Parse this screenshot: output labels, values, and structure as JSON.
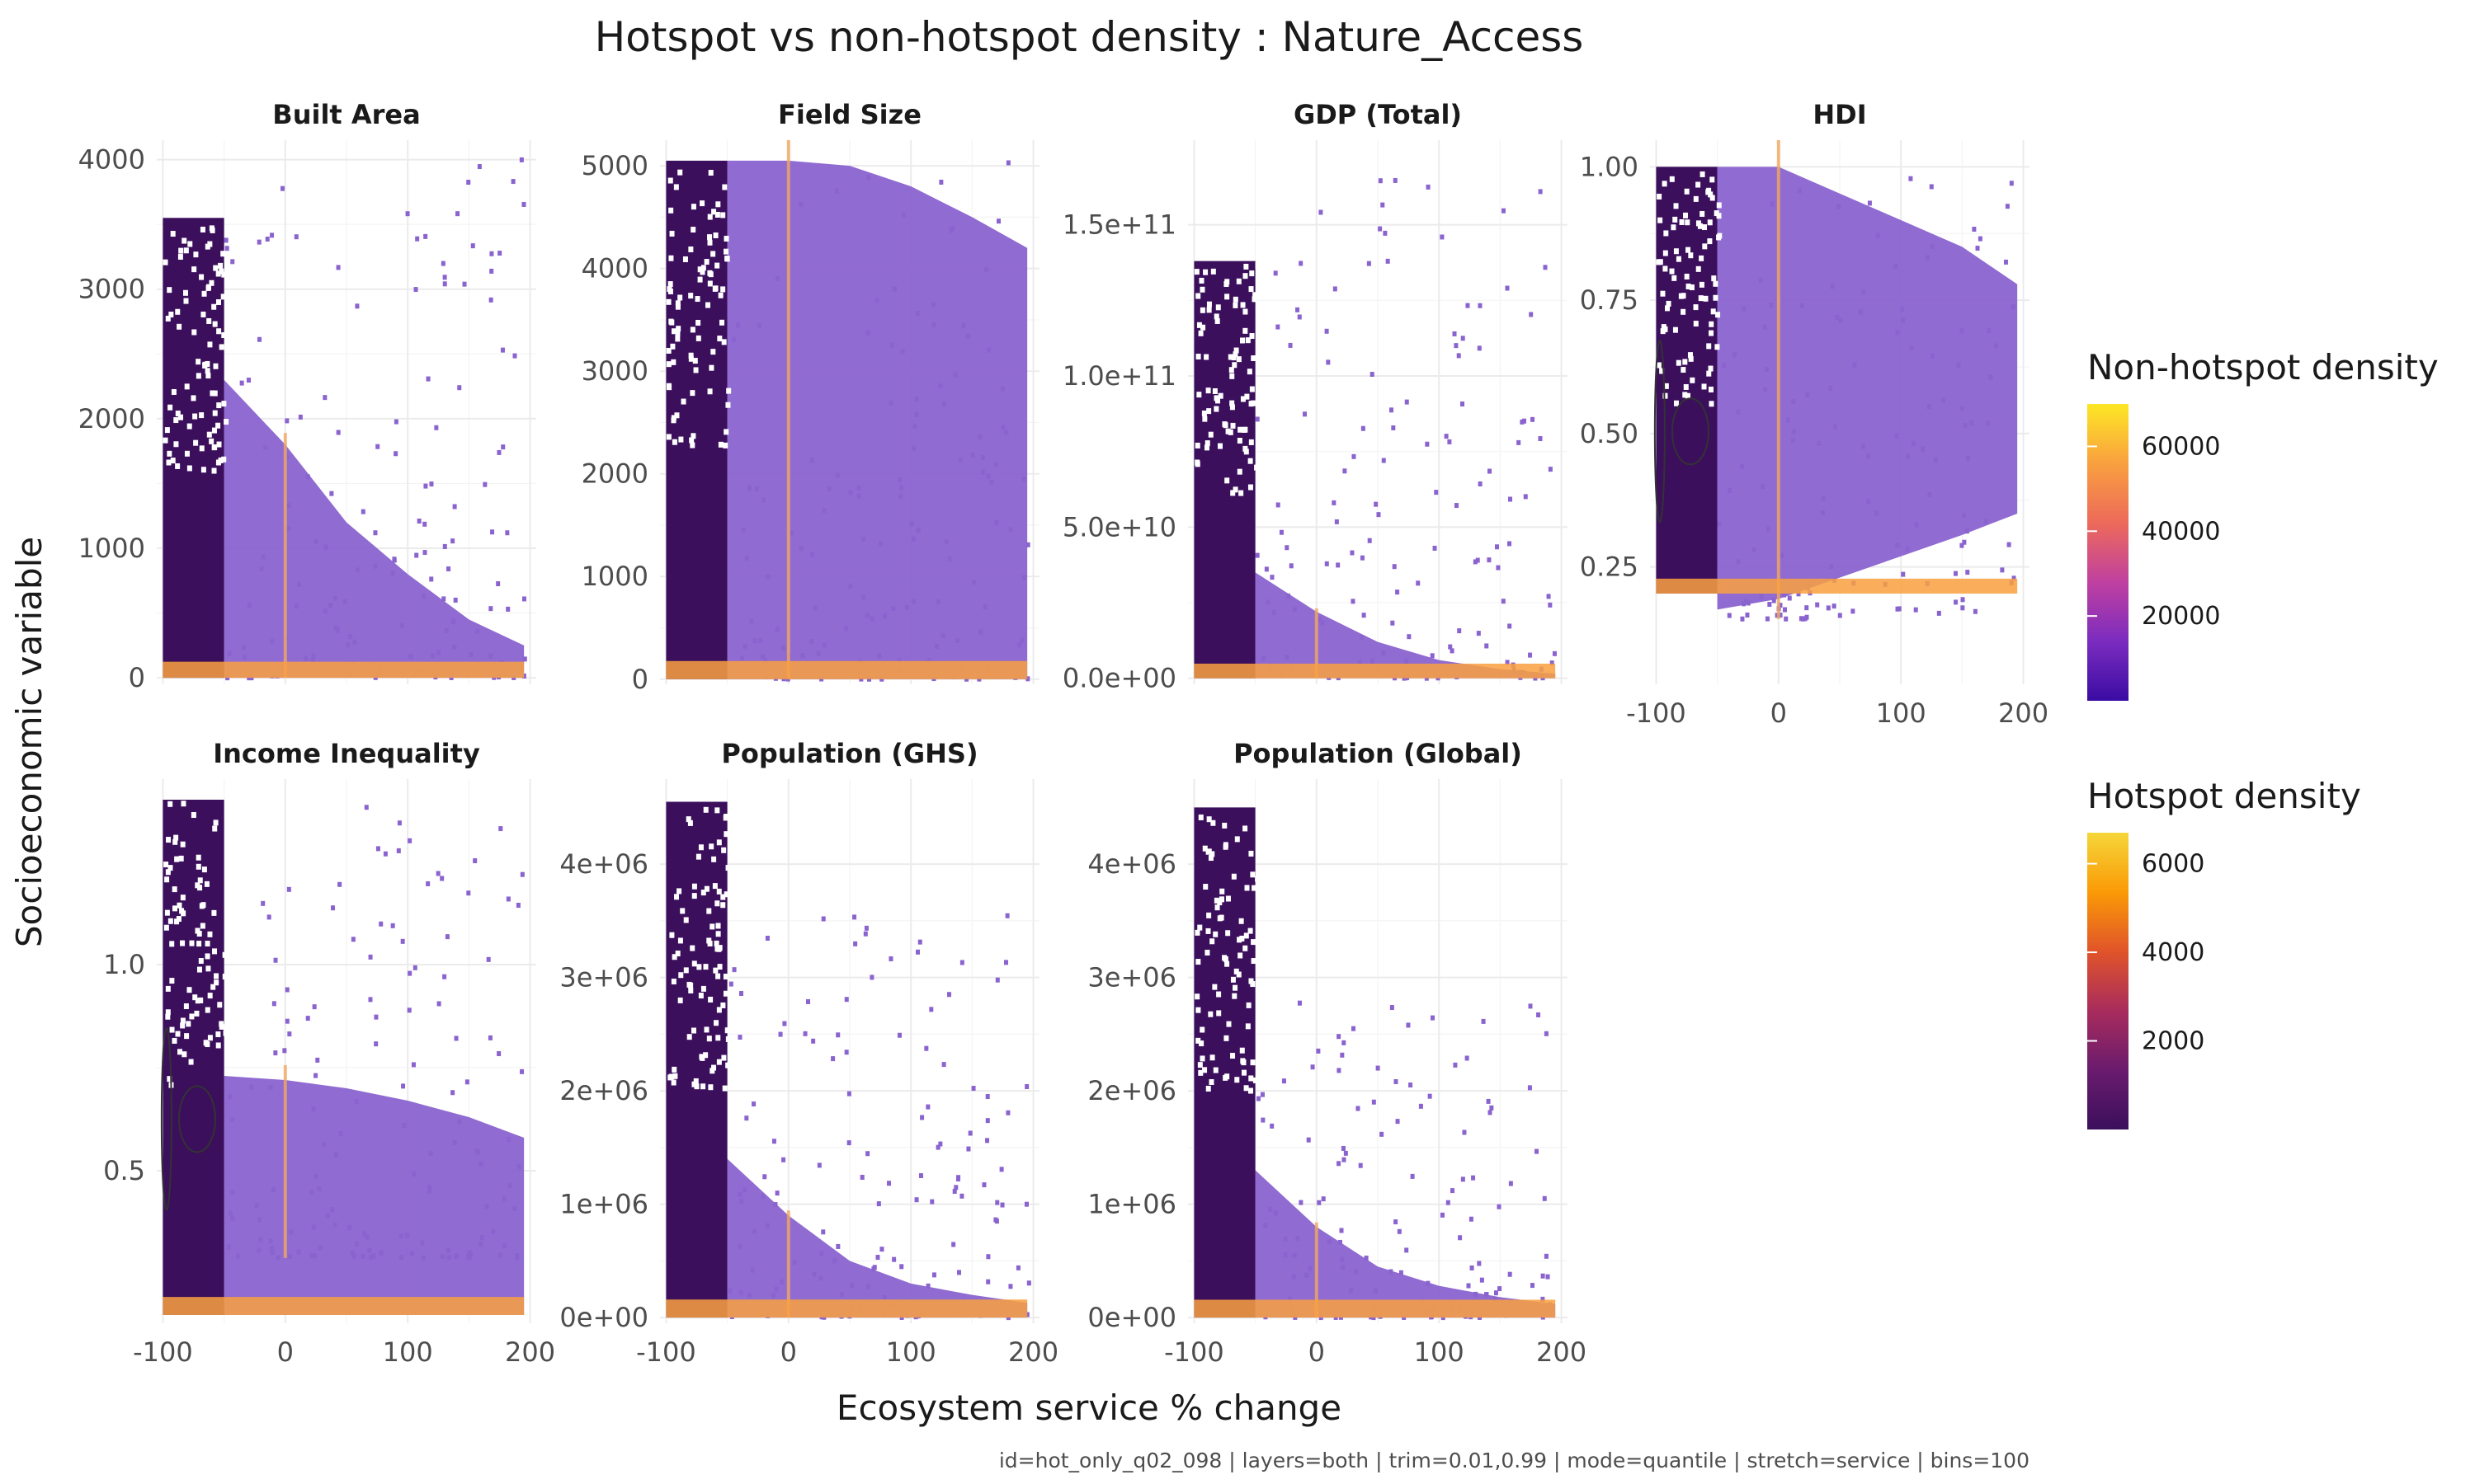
{
  "title": "Hotspot vs non-hotspot density : Nature_Access",
  "xlabel": "Ecosystem service % change",
  "ylabel": "Socioeconomic variable",
  "caption": "id=hot_only_q02_098 | layers=both | trim=0.01,0.99 | mode=quantile | stretch=service | bins=100",
  "colors": {
    "non_hotspot_scale": [
      "#3a0ca3",
      "#7b2cbf",
      "#c040a0",
      "#ed6a5a",
      "#f9a03f",
      "#fde725"
    ],
    "hotspot_scale": [
      "#3b0f5c",
      "#6a1b6e",
      "#a82c5c",
      "#e0542a",
      "#fb9a06",
      "#f5d63a"
    ],
    "bulk_fill": "#8a63cf",
    "contour": "#333333"
  },
  "legends": {
    "non_hotspot": {
      "title": "Non-hotspot density",
      "labels": [
        "60000",
        "40000",
        "20000"
      ],
      "values": [
        60000,
        40000,
        20000
      ],
      "max": 70000
    },
    "hotspot": {
      "title": "Hotspot density",
      "labels": [
        "6000",
        "4000",
        "2000"
      ],
      "values": [
        6000,
        4000,
        2000
      ],
      "max": 6700
    }
  },
  "chart_data": [
    {
      "type": "heatmap",
      "facet": "Built Area",
      "xlim": [
        -105,
        205
      ],
      "ylim": [
        -50,
        4150
      ],
      "xticks": [
        -100,
        0,
        100,
        200
      ],
      "xtick_labels": [
        "",
        "",
        "",
        ""
      ],
      "yticks": [
        0,
        1000,
        2000,
        3000,
        4000
      ],
      "ytick_labels": [
        "0",
        "1000",
        "2000",
        "3000",
        "4000"
      ],
      "spread_max": [
        2300,
        1800,
        1200,
        800,
        450,
        250
      ],
      "outlier_max": 4050,
      "hotspot_max": 3550,
      "contours": false
    },
    {
      "type": "heatmap",
      "facet": "Field Size",
      "xlim": [
        -105,
        205
      ],
      "ylim": [
        -50,
        5250
      ],
      "xticks": [
        -100,
        0,
        100,
        200
      ],
      "xtick_labels": [
        "",
        "",
        "",
        ""
      ],
      "yticks": [
        0,
        1000,
        2000,
        3000,
        4000,
        5000
      ],
      "ytick_labels": [
        "0",
        "1000",
        "2000",
        "3000",
        "4000",
        "5000"
      ],
      "spread_max": [
        5050,
        5050,
        5000,
        4800,
        4500,
        4200
      ],
      "outlier_max": 5050,
      "hotspot_max": 5050,
      "contours": false
    },
    {
      "type": "heatmap",
      "facet": "GDP (Total)",
      "xlim": [
        -105,
        205
      ],
      "ylim": [
        -2000000000,
        178000000000
      ],
      "xticks": [
        -100,
        0,
        100,
        200
      ],
      "xtick_labels": [
        "",
        "",
        "",
        ""
      ],
      "yticks": [
        0,
        50000000000,
        100000000000,
        150000000000
      ],
      "ytick_labels": [
        "0.0e+00",
        "5.0e+10",
        "1.0e+11",
        "1.5e+11"
      ],
      "spread_max": [
        35000000000,
        22000000000,
        12000000000,
        6000000000,
        3000000000,
        1500000000
      ],
      "outlier_max": 170000000000,
      "hotspot_max": 138000000000,
      "contours": false
    },
    {
      "type": "heatmap",
      "facet": "HDI",
      "xlim": [
        -105,
        205
      ],
      "ylim": [
        0.03,
        1.05
      ],
      "xticks": [
        -100,
        0,
        100,
        200
      ],
      "xtick_labels": [
        "-100",
        "0",
        "100",
        "200"
      ],
      "yticks": [
        0.25,
        0.5,
        0.75,
        1.0
      ],
      "ytick_labels": [
        "0.25",
        "0.50",
        "0.75",
        "1.00"
      ],
      "spread_max": [
        1.0,
        1.0,
        0.95,
        0.9,
        0.85,
        0.78
      ],
      "outlier_max": 1.0,
      "hotspot_max": 1.0,
      "contours": true
    },
    {
      "type": "heatmap",
      "facet": "Income Inequality",
      "xlim": [
        -105,
        205
      ],
      "ylim": [
        0.13,
        1.45
      ],
      "xticks": [
        -100,
        0,
        100,
        200
      ],
      "xtick_labels": [
        "-100",
        "0",
        "100",
        "200"
      ],
      "yticks": [
        0.5,
        1.0
      ],
      "ytick_labels": [
        "0.5",
        "1.0"
      ],
      "spread_max": [
        0.73,
        0.72,
        0.7,
        0.67,
        0.63,
        0.58
      ],
      "outlier_max": 1.4,
      "hotspot_max": 1.4,
      "contours": true
    },
    {
      "type": "heatmap",
      "facet": "Population (GHS)",
      "xlim": [
        -105,
        205
      ],
      "ylim": [
        -50000,
        4750000
      ],
      "xticks": [
        -100,
        0,
        100,
        200
      ],
      "xtick_labels": [
        "-100",
        "0",
        "100",
        "200"
      ],
      "yticks": [
        0,
        1000000,
        2000000,
        3000000,
        4000000
      ],
      "ytick_labels": [
        "0e+00",
        "1e+06",
        "2e+06",
        "3e+06",
        "4e+06"
      ],
      "spread_max": [
        1400000,
        900000,
        500000,
        300000,
        200000,
        130000
      ],
      "outlier_max": 3600000,
      "hotspot_max": 4550000,
      "contours": false
    },
    {
      "type": "heatmap",
      "facet": "Population (Global)",
      "xlim": [
        -105,
        205
      ],
      "ylim": [
        -50000,
        4750000
      ],
      "xticks": [
        -100,
        0,
        100,
        200
      ],
      "xtick_labels": [
        "-100",
        "0",
        "100",
        "200"
      ],
      "yticks": [
        0,
        1000000,
        2000000,
        3000000,
        4000000
      ],
      "ytick_labels": [
        "0e+00",
        "1e+06",
        "2e+06",
        "3e+06",
        "4e+06"
      ],
      "spread_max": [
        1300000,
        800000,
        450000,
        280000,
        180000,
        120000
      ],
      "outlier_max": 2800000,
      "hotspot_max": 4500000,
      "contours": false
    }
  ]
}
